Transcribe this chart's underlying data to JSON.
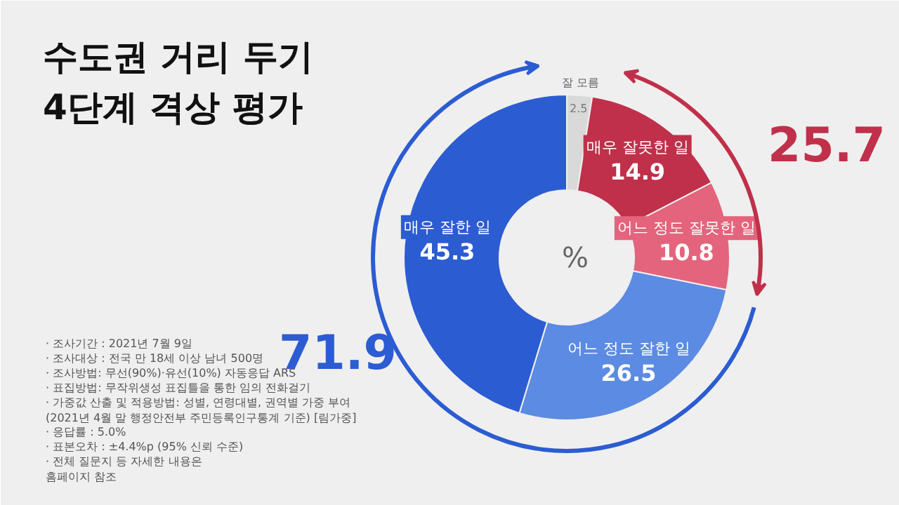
{
  "chart_data": {
    "type": "donut",
    "title": "수도권 거리 두기\n4단계 격상 평가",
    "categories": [
      "잘 모름",
      "매우 잘못한 일",
      "어느 정도 잘못한 일",
      "어느 정도 잘한 일",
      "매우 잘한 일"
    ],
    "values": [
      2.5,
      14.9,
      10.8,
      26.5,
      45.3
    ],
    "colors": [
      "#d9d9d9",
      "#c0304a",
      "#e3647c",
      "#5b8be2",
      "#2c5cd2"
    ],
    "data_labels": true,
    "annotations": [
      "71.9",
      "25.7",
      "%",
      "· 조사기간 : 2021년 7월 9일",
      "· 조사대상 : 전국 만 18세 이상 남녀 500명",
      "· 조사방법: 무선(90%)·유선(10%) 자동응답 ARS",
      "· 표집방법: 무작위생성 표집틀을 통한 임의 전화걸기",
      "· 가중값 산출 및 적용방법: 성별, 연령대별, 권역별 가중 부여\n  (2021년 4월 말 행정안전부 주민등록인구통계 기준) [림가중]",
      "· 응답률 : 5.0%",
      "· 표본오차 : ±4.4%p (95% 신뢰 수준)",
      "· 전체 질문지 등 자세한 내용은\n  홈페이지 참조"
    ]
  }
}
